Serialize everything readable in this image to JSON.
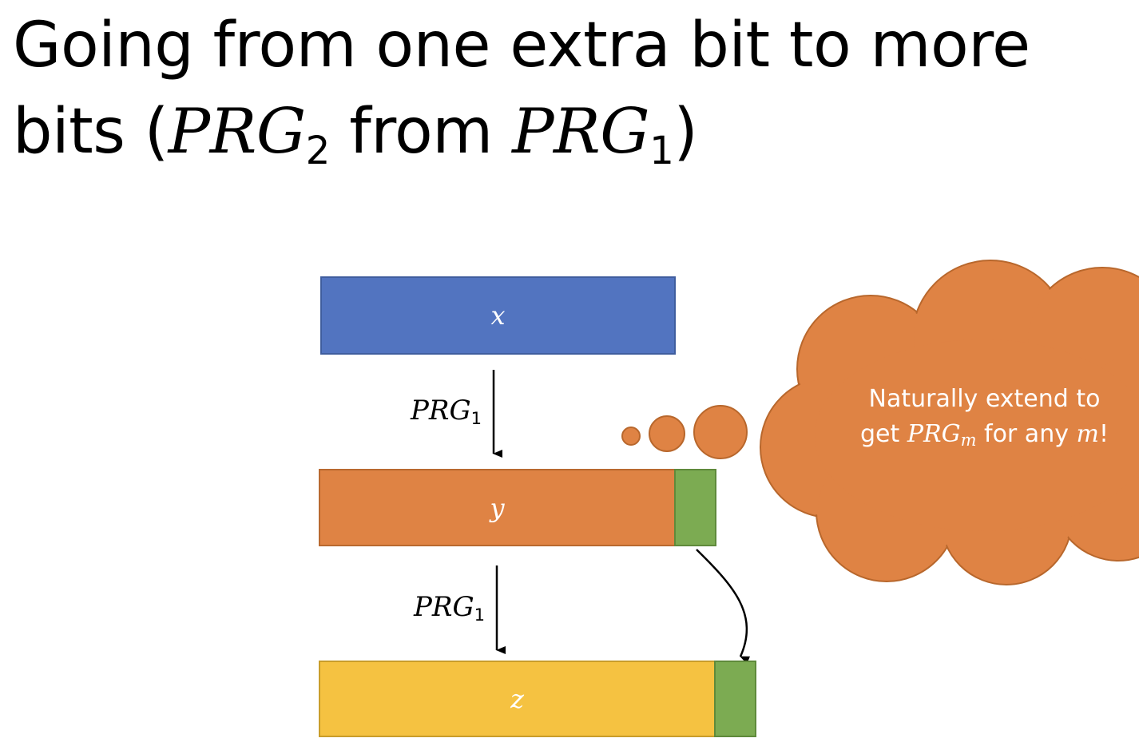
{
  "title": {
    "line1": "Going from one extra bit to more",
    "line2_prefix": "bits (",
    "line2_prg_a": "PRG",
    "line2_prg_a_sub": "2",
    "line2_middle": " from ",
    "line2_prg_b": "PRG",
    "line2_prg_b_sub": "1",
    "line2_suffix": ")"
  },
  "blocks": {
    "x_label": "x",
    "y_label": "y",
    "z_label": "z"
  },
  "arrows": {
    "first_label": "PRG",
    "first_sub": "1",
    "second_label": "PRG",
    "second_sub": "1"
  },
  "cloud": {
    "line1": "Naturally extend to",
    "line2_prefix": "get ",
    "line2_prg": "PRG",
    "line2_prg_sub": "m",
    "line2_middle": " for any ",
    "line2_var": "m",
    "line2_suffix": "!"
  },
  "colors": {
    "blue": "#5274c0",
    "orange": "#df8344",
    "green": "#7cab52",
    "yellow": "#f5c241"
  }
}
